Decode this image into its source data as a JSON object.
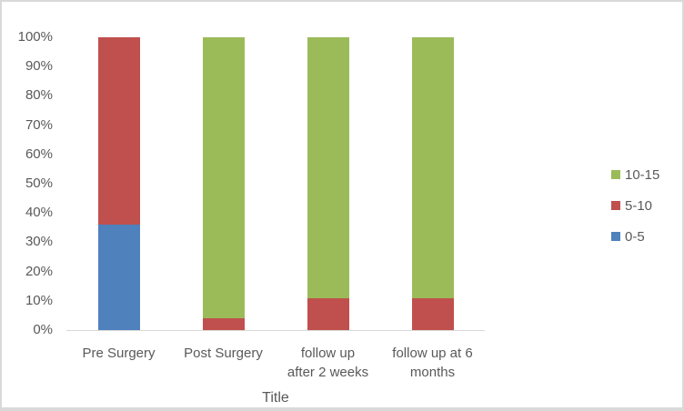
{
  "chart_data": {
    "type": "bar",
    "variant": "100%-stacked-column",
    "title": "",
    "xlabel": "Title",
    "ylabel": "",
    "categories": [
      "Pre Surgery",
      "Post Surgery",
      "follow up after 2 weeks",
      "follow up at 6 months"
    ],
    "category_lines": [
      [
        "Pre Surgery"
      ],
      [
        "Post Surgery"
      ],
      [
        "follow up",
        "after 2 weeks"
      ],
      [
        "follow up at 6",
        "months"
      ]
    ],
    "series": [
      {
        "name": "0-5",
        "color": "#4F81BD",
        "values": [
          36,
          0,
          0,
          0
        ]
      },
      {
        "name": "5-10",
        "color": "#C0504D",
        "values": [
          64,
          4,
          11,
          11
        ]
      },
      {
        "name": "10-15",
        "color": "#9BBB59",
        "values": [
          0,
          96,
          89,
          89
        ]
      }
    ],
    "ylim": [
      0,
      100
    ],
    "ytick_labels": [
      "0%",
      "10%",
      "20%",
      "30%",
      "40%",
      "50%",
      "60%",
      "70%",
      "80%",
      "90%",
      "100%"
    ],
    "gridlines": false,
    "legend_position": "right",
    "legend": [
      {
        "label": "10-15",
        "color": "#9BBB59"
      },
      {
        "label": "5-10",
        "color": "#C0504D"
      },
      {
        "label": "0-5",
        "color": "#4F81BD"
      }
    ]
  },
  "colors": {
    "text": "#595959",
    "axis_line": "#D9D9D9",
    "frame_border": "#D9D9D9",
    "background": "#FFFFFF",
    "series_blue": "#4F81BD",
    "series_red": "#C0504D",
    "series_green": "#9BBB59"
  }
}
